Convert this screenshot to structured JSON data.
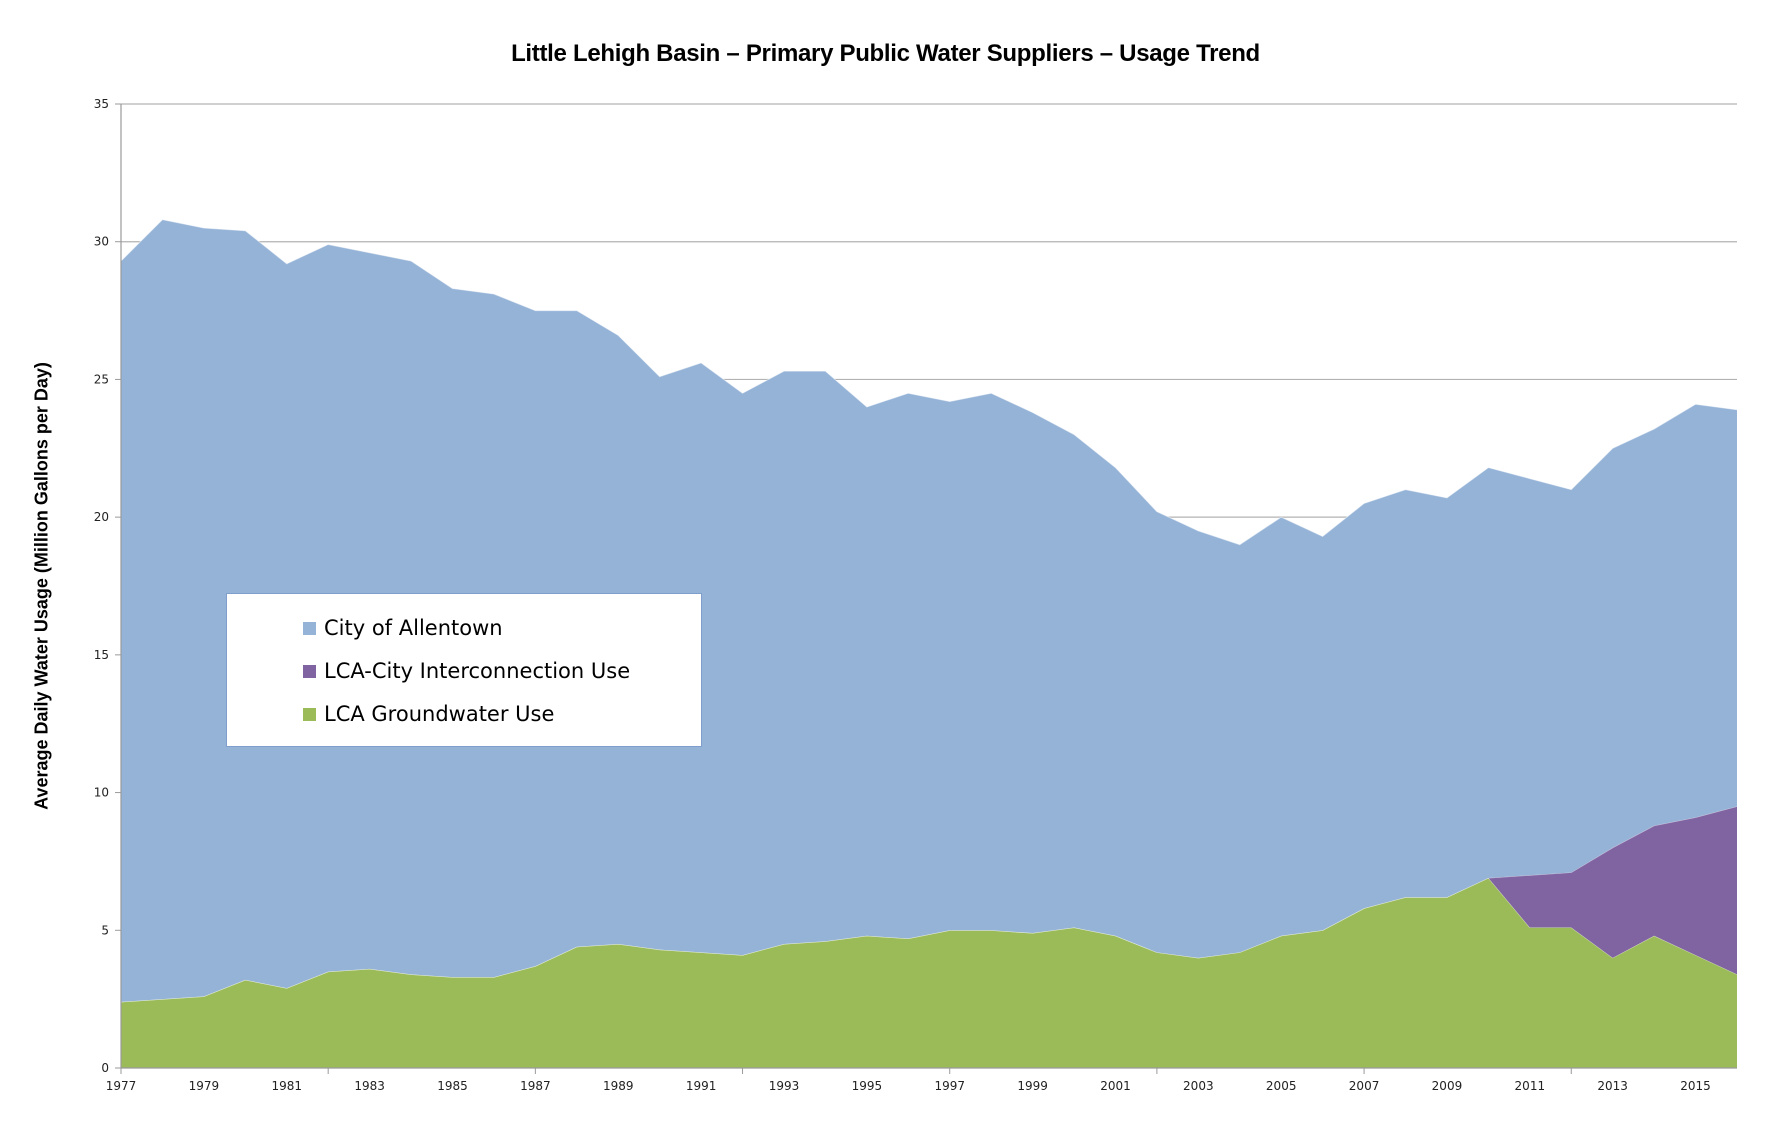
{
  "chart_data": {
    "type": "area",
    "stacked": true,
    "title": "Little Lehigh Basin – Primary Public Water Suppliers – Usage Trend",
    "xlabel": "",
    "ylabel": "Average Daily Water Usage (Million Gallons per Day)",
    "ylim": [
      0,
      35
    ],
    "yticks": [
      0,
      5,
      10,
      15,
      20,
      25,
      30,
      35
    ],
    "x": [
      1977,
      1978,
      1979,
      1980,
      1981,
      1982,
      1983,
      1984,
      1985,
      1986,
      1987,
      1988,
      1989,
      1990,
      1991,
      1992,
      1993,
      1994,
      1995,
      1996,
      1997,
      1998,
      1999,
      2000,
      2001,
      2002,
      2003,
      2004,
      2005,
      2006,
      2007,
      2008,
      2009,
      2010,
      2011,
      2012,
      2013,
      2014,
      2015,
      2016
    ],
    "xtick_labels": [
      "1977",
      "1979",
      "1981",
      "1983",
      "1985",
      "1987",
      "1989",
      "1991",
      "1993",
      "1995",
      "1997",
      "1999",
      "2001",
      "2003",
      "2005",
      "2007",
      "2009",
      "2011",
      "2013",
      "2015"
    ],
    "grid": true,
    "legend_position": "center-left",
    "series": [
      {
        "name": "LCA Groundwater Use",
        "color": "#9bbb59",
        "values": [
          2.4,
          2.5,
          2.6,
          3.2,
          2.9,
          3.5,
          3.6,
          3.4,
          3.3,
          3.3,
          3.7,
          4.4,
          4.5,
          4.3,
          4.2,
          4.1,
          4.5,
          4.6,
          4.8,
          4.7,
          5.0,
          5.0,
          4.9,
          5.1,
          4.8,
          4.2,
          4.0,
          4.2,
          4.8,
          5.0,
          5.8,
          6.2,
          6.2,
          6.9,
          5.1,
          5.1,
          4.0,
          4.8,
          4.1,
          3.4
        ]
      },
      {
        "name": "LCA-City Interconnection Use",
        "color": "#8064a2",
        "values": [
          0,
          0,
          0,
          0,
          0,
          0,
          0,
          0,
          0,
          0,
          0,
          0,
          0,
          0,
          0,
          0,
          0,
          0,
          0,
          0,
          0,
          0,
          0,
          0,
          0,
          0,
          0,
          0,
          0,
          0,
          0,
          0,
          0,
          0,
          1.9,
          2.0,
          4.0,
          4.0,
          5.0,
          6.1
        ]
      },
      {
        "name": "City of Allentown",
        "color": "#95b3d7",
        "values": [
          26.9,
          28.3,
          27.9,
          27.2,
          26.3,
          26.4,
          26.0,
          25.9,
          25.0,
          24.8,
          23.8,
          23.1,
          22.1,
          20.8,
          21.4,
          20.4,
          20.8,
          20.7,
          19.2,
          19.8,
          19.2,
          19.5,
          18.9,
          17.9,
          17.0,
          16.0,
          15.5,
          14.8,
          15.2,
          14.3,
          14.7,
          14.8,
          14.5,
          14.9,
          14.4,
          13.9,
          14.5,
          14.4,
          15.0,
          14.4
        ]
      }
    ]
  },
  "legend": {
    "items": [
      {
        "label": "City of Allentown",
        "color": "#95b3d7"
      },
      {
        "label": "LCA-City Interconnection Use",
        "color": "#8064a2"
      },
      {
        "label": "LCA Groundwater Use",
        "color": "#9bbb59"
      }
    ]
  }
}
